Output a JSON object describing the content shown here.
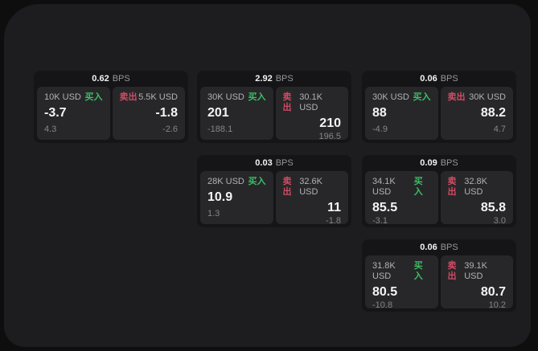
{
  "labels": {
    "buy": "买入",
    "sell": "卖出",
    "bps_unit": "BPS"
  },
  "colors": {
    "buy_green": "#3bbf63",
    "sell_red": "#d14b63",
    "window_bg": "#1d1d1f",
    "card_bg": "#151517",
    "panel_bg": "#27272a"
  },
  "cards": [
    {
      "bps": "0.62",
      "buy": {
        "amount": "10K USD",
        "price": "-3.7",
        "delta": "4.3"
      },
      "sell": {
        "amount": "5.5K USD",
        "price": "-1.8",
        "delta": "-2.6"
      }
    },
    {
      "bps": "2.92",
      "buy": {
        "amount": "30K USD",
        "price": "201",
        "delta": "-188.1"
      },
      "sell": {
        "amount": "30.1K USD",
        "price": "210",
        "delta": "196.5"
      }
    },
    {
      "bps": "0.06",
      "buy": {
        "amount": "30K USD",
        "price": "88",
        "delta": "-4.9"
      },
      "sell": {
        "amount": "30K USD",
        "price": "88.2",
        "delta": "4.7"
      }
    },
    {
      "bps": "0.03",
      "buy": {
        "amount": "28K USD",
        "price": "10.9",
        "delta": "1.3"
      },
      "sell": {
        "amount": "32.6K USD",
        "price": "11",
        "delta": "-1.8"
      }
    },
    {
      "bps": "0.09",
      "buy": {
        "amount": "34.1K USD",
        "price": "85.5",
        "delta": "-3.1"
      },
      "sell": {
        "amount": "32.8K USD",
        "price": "85.8",
        "delta": "3.0"
      }
    },
    {
      "bps": "0.06",
      "buy": {
        "amount": "31.8K USD",
        "price": "80.5",
        "delta": "-10.8"
      },
      "sell": {
        "amount": "39.1K USD",
        "price": "80.7",
        "delta": "10.2"
      }
    }
  ]
}
